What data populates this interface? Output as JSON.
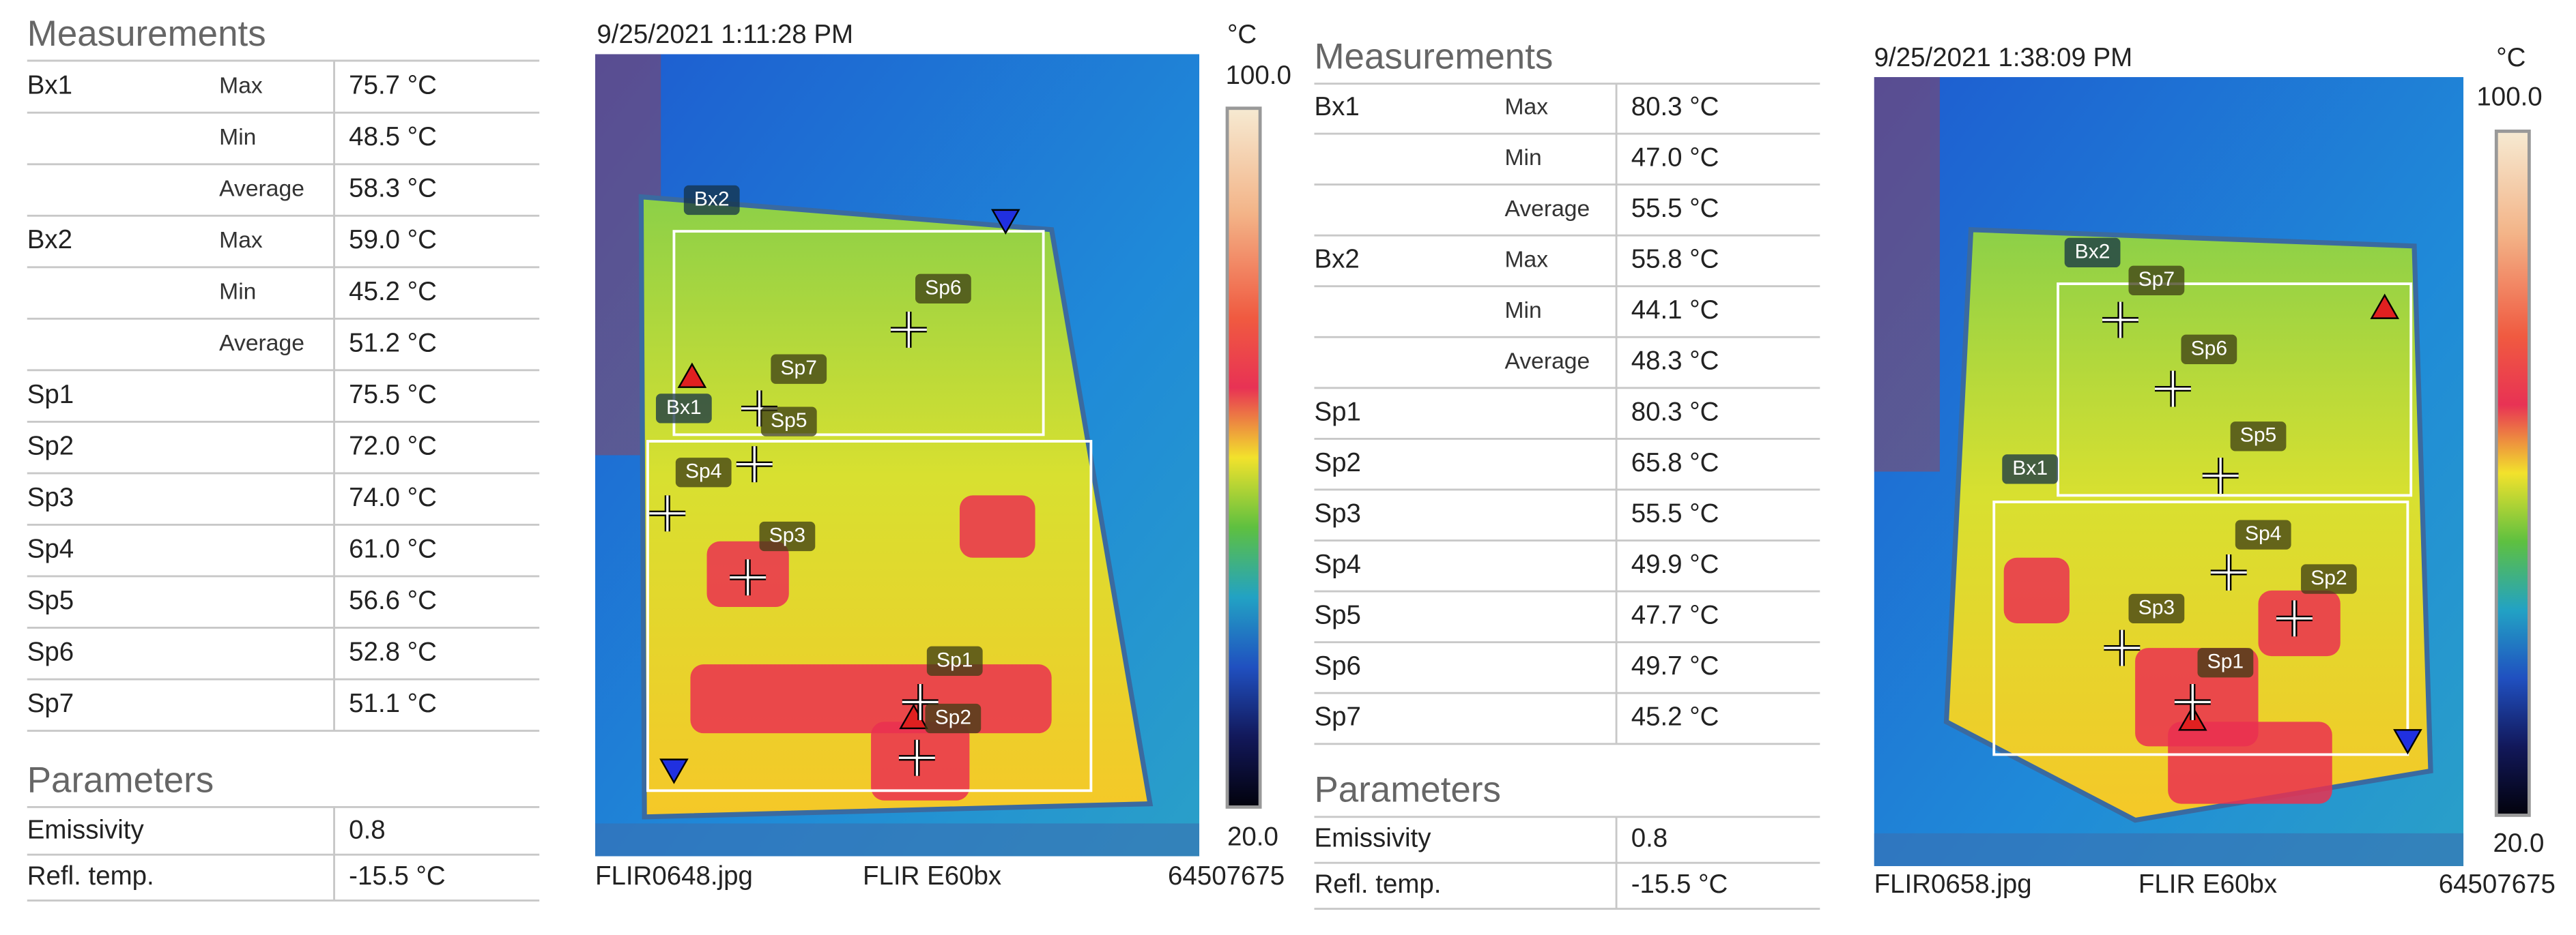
{
  "panels": [
    {
      "measurements": {
        "title": "Measurements",
        "rows": [
          {
            "name": "Bx1",
            "stat": "Max",
            "value": "75.7 °C"
          },
          {
            "stat": "Min",
            "value": "48.5 °C"
          },
          {
            "stat": "Average",
            "value": "58.3 °C"
          },
          {
            "name": "Bx2",
            "stat": "Max",
            "value": "59.0 °C"
          },
          {
            "stat": "Min",
            "value": "45.2 °C"
          },
          {
            "stat": "Average",
            "value": "51.2 °C"
          },
          {
            "name": "Sp1",
            "value": "75.5 °C"
          },
          {
            "name": "Sp2",
            "value": "72.0 °C"
          },
          {
            "name": "Sp3",
            "value": "74.0 °C"
          },
          {
            "name": "Sp4",
            "value": "61.0 °C"
          },
          {
            "name": "Sp5",
            "value": "56.6 °C"
          },
          {
            "name": "Sp6",
            "value": "52.8 °C"
          },
          {
            "name": "Sp7",
            "value": "51.1 °C"
          }
        ]
      },
      "parameters": {
        "title": "Parameters",
        "rows": [
          {
            "name": "Emissivity",
            "value": "0.8"
          },
          {
            "name": "Refl. temp.",
            "value": "-15.5 °C"
          }
        ]
      },
      "image": {
        "timestamp": "9/25/2021 1:11:28 PM",
        "unit": "°C",
        "scale_max": "100.0",
        "scale_min": "20.0",
        "filename": "FLIR0648.jpg",
        "camera": "FLIR E60bx",
        "serial": "64507675",
        "markers": [
          "Bx2",
          "Bx1",
          "Sp6",
          "Sp7",
          "Sp5",
          "Sp4",
          "Sp3",
          "Sp1",
          "Sp2"
        ]
      }
    },
    {
      "measurements": {
        "title": "Measurements",
        "rows": [
          {
            "name": "Bx1",
            "stat": "Max",
            "value": "80.3 °C"
          },
          {
            "stat": "Min",
            "value": "47.0 °C"
          },
          {
            "stat": "Average",
            "value": "55.5 °C"
          },
          {
            "name": "Bx2",
            "stat": "Max",
            "value": "55.8 °C"
          },
          {
            "stat": "Min",
            "value": "44.1 °C"
          },
          {
            "stat": "Average",
            "value": "48.3 °C"
          },
          {
            "name": "Sp1",
            "value": "80.3 °C"
          },
          {
            "name": "Sp2",
            "value": "65.8 °C"
          },
          {
            "name": "Sp3",
            "value": "55.5 °C"
          },
          {
            "name": "Sp4",
            "value": "49.9 °C"
          },
          {
            "name": "Sp5",
            "value": "47.7 °C"
          },
          {
            "name": "Sp6",
            "value": "49.7 °C"
          },
          {
            "name": "Sp7",
            "value": "45.2 °C"
          }
        ]
      },
      "parameters": {
        "title": "Parameters",
        "rows": [
          {
            "name": "Emissivity",
            "value": "0.8"
          },
          {
            "name": "Refl. temp.",
            "value": "-15.5 °C"
          }
        ]
      },
      "image": {
        "timestamp": "9/25/2021 1:38:09 PM",
        "unit": "°C",
        "scale_max": "100.0",
        "scale_min": "20.0",
        "filename": "FLIR0658.jpg",
        "camera": "FLIR E60bx",
        "serial": "64507675",
        "markers": [
          "Bx2",
          "Bx1",
          "Sp7",
          "Sp6",
          "Sp5",
          "Sp4",
          "Sp2",
          "Sp3",
          "Sp1"
        ]
      }
    }
  ]
}
